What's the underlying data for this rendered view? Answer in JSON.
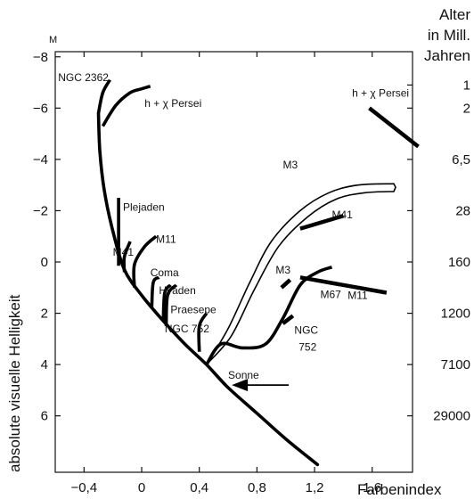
{
  "chart_data": {
    "type": "line",
    "xlabel": "Farbenindex",
    "ylabel": "absolute visuelle Helligkeit",
    "y_unit_marker": "M",
    "xlim": [
      -0.6,
      1.88
    ],
    "ylim": [
      8.2,
      -8.2
    ],
    "y_inverted": true,
    "x_ticks": [
      -0.4,
      0,
      0.4,
      0.8,
      1.2,
      1.6
    ],
    "x_tick_labels": [
      "−0,4",
      "0",
      "0,4",
      "0,8",
      "1,2",
      "1,6"
    ],
    "y_ticks": [
      -8,
      -6,
      -4,
      -2,
      0,
      2,
      4,
      6
    ],
    "y_tick_labels": [
      "−8",
      "−6",
      "−4",
      "−2",
      "0",
      "2",
      "4",
      "6"
    ],
    "age_axis": {
      "title": [
        "Alter",
        "in Mill.",
        "Jahren"
      ],
      "ticks": [
        {
          "label": "1",
          "mag": -6.9
        },
        {
          "label": "2",
          "mag": -6.0
        },
        {
          "label": "6,5",
          "mag": -4.0
        },
        {
          "label": "28",
          "mag": -2.0
        },
        {
          "label": "160",
          "mag": 0.0
        },
        {
          "label": "1200",
          "mag": 2.0
        },
        {
          "label": "7100",
          "mag": 4.0
        },
        {
          "label": "29000",
          "mag": 6.0
        }
      ]
    },
    "main_sequence": {
      "points": [
        [
          -0.3,
          -5.8
        ],
        [
          -0.29,
          -4.3
        ],
        [
          -0.26,
          -2.8
        ],
        [
          -0.2,
          -1.2
        ],
        [
          -0.12,
          0.3
        ],
        [
          0.0,
          1.3
        ],
        [
          0.15,
          2.3
        ],
        [
          0.3,
          3.2
        ],
        [
          0.45,
          4.0
        ],
        [
          0.6,
          4.9
        ],
        [
          0.8,
          5.9
        ],
        [
          1.0,
          6.9
        ],
        [
          1.22,
          7.9
        ]
      ]
    },
    "series": [
      {
        "name": "NGC 2362",
        "role": "turnoff",
        "points": [
          [
            -0.3,
            -5.8
          ],
          [
            -0.27,
            -6.6
          ],
          [
            -0.22,
            -7.1
          ]
        ]
      },
      {
        "name": "h + χ Persei",
        "role": "turnoff",
        "points": [
          [
            -0.27,
            -5.3
          ],
          [
            -0.18,
            -6.1
          ],
          [
            -0.08,
            -6.6
          ],
          [
            0.0,
            -6.75
          ],
          [
            0.06,
            -6.85
          ]
        ]
      },
      {
        "name": "Plejaden",
        "role": "turnoff",
        "points": [
          [
            -0.16,
            0.15
          ],
          [
            -0.16,
            -2.5
          ]
        ]
      },
      {
        "name": "M41",
        "role": "turnoff",
        "points": [
          [
            -0.12,
            0.4
          ],
          [
            -0.12,
            -0.2
          ],
          [
            -0.08,
            -0.8
          ]
        ]
      },
      {
        "name": "M11",
        "role": "turnoff",
        "points": [
          [
            -0.05,
            1.0
          ],
          [
            -0.05,
            0.1
          ],
          [
            0.02,
            -0.6
          ],
          [
            0.1,
            -1.0
          ]
        ]
      },
      {
        "name": "Coma",
        "role": "turnoff",
        "points": [
          [
            0.07,
            1.8
          ],
          [
            0.08,
            0.8
          ],
          [
            0.12,
            0.6
          ]
        ]
      },
      {
        "name": "Hyaden",
        "role": "turnoff",
        "points": [
          [
            0.15,
            2.3
          ],
          [
            0.16,
            1.2
          ],
          [
            0.2,
            0.9
          ]
        ]
      },
      {
        "name": "Praesepe",
        "role": "turnoff",
        "points": [
          [
            0.17,
            2.5
          ],
          [
            0.18,
            1.3
          ],
          [
            0.24,
            0.9
          ]
        ]
      },
      {
        "name": "NGC 752",
        "role": "turnoff",
        "points": [
          [
            0.4,
            3.5
          ],
          [
            0.4,
            2.5
          ],
          [
            0.45,
            2.0
          ]
        ]
      },
      {
        "name": "M67",
        "role": "turnoff",
        "points": [
          [
            0.45,
            4.0
          ],
          [
            0.55,
            3.2
          ],
          [
            0.7,
            3.35
          ],
          [
            0.86,
            3.2
          ],
          [
            0.98,
            2.2
          ],
          [
            1.1,
            0.9
          ],
          [
            1.22,
            0.4
          ],
          [
            1.32,
            0.2
          ]
        ]
      },
      {
        "name": "NGC 752",
        "role": "giants",
        "points": [
          [
            0.98,
            2.4
          ],
          [
            1.05,
            2.1
          ]
        ]
      },
      {
        "name": "M3",
        "role": "giants",
        "points": [
          [
            0.97,
            1.0
          ],
          [
            1.03,
            0.7
          ]
        ]
      },
      {
        "name": "M11",
        "role": "giants",
        "points": [
          [
            1.1,
            0.6
          ],
          [
            1.7,
            1.2
          ]
        ]
      },
      {
        "name": "M41",
        "role": "giants",
        "points": [
          [
            1.1,
            -1.3
          ],
          [
            1.4,
            -1.8
          ]
        ]
      },
      {
        "name": "h + χ Persei",
        "role": "giants",
        "points": [
          [
            1.58,
            -6.0
          ],
          [
            1.92,
            -4.5
          ]
        ]
      }
    ],
    "m3_giant_branch": {
      "name": "M3",
      "outer": [
        [
          0.45,
          4.0
        ],
        [
          0.6,
          2.6
        ],
        [
          0.75,
          0.8
        ],
        [
          0.9,
          -0.8
        ],
        [
          1.1,
          -2.0
        ],
        [
          1.3,
          -2.7
        ],
        [
          1.5,
          -3.0
        ],
        [
          1.75,
          -3.05
        ]
      ],
      "inner": [
        [
          0.45,
          4.0
        ],
        [
          0.62,
          2.9
        ],
        [
          0.78,
          1.1
        ],
        [
          0.95,
          -0.6
        ],
        [
          1.15,
          -1.75
        ],
        [
          1.35,
          -2.45
        ],
        [
          1.55,
          -2.7
        ],
        [
          1.75,
          -2.75
        ]
      ]
    },
    "sun": {
      "label": "Sonne",
      "x": 0.65,
      "mag": 4.8
    },
    "labels": [
      {
        "text": "NGC 2362",
        "x": -0.58,
        "mag": -7.05
      },
      {
        "text": "h + χ Persei",
        "x": 0.02,
        "mag": -6.05
      },
      {
        "text": "h + χ Persei",
        "x": 1.46,
        "mag": -6.45
      },
      {
        "text": "Plejaden",
        "x": -0.13,
        "mag": -2.0
      },
      {
        "text": "M41",
        "x": -0.2,
        "mag": -0.25
      },
      {
        "text": "M11",
        "x": 0.1,
        "mag": -0.75
      },
      {
        "text": "Coma",
        "x": 0.06,
        "mag": 0.55
      },
      {
        "text": "Hyaden",
        "x": 0.12,
        "mag": 1.25
      },
      {
        "text": "Praesepe",
        "x": 0.2,
        "mag": 2.0
      },
      {
        "text": "NGC 752",
        "x": 0.16,
        "mag": 2.75
      },
      {
        "text": "M3",
        "x": 0.98,
        "mag": -3.65
      },
      {
        "text": "M41",
        "x": 1.32,
        "mag": -1.7
      },
      {
        "text": "M11",
        "x": 1.43,
        "mag": 1.45
      },
      {
        "text": "M3",
        "x": 0.93,
        "mag": 0.45
      },
      {
        "text": "M67",
        "x": 1.24,
        "mag": 1.4
      },
      {
        "text": "NGC",
        "x": 1.06,
        "mag": 2.8
      },
      {
        "text": "752",
        "x": 1.09,
        "mag": 3.45
      },
      {
        "text": "Sonne",
        "x": 0.6,
        "mag": 4.55
      }
    ]
  }
}
